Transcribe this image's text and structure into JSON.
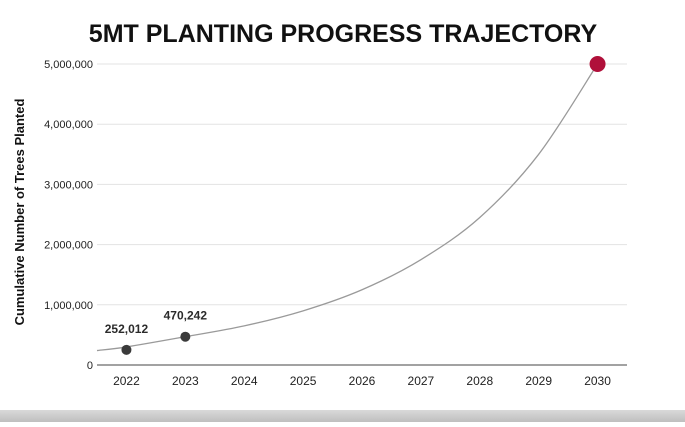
{
  "colors": {
    "background": "#ffffff",
    "grid": "#e3e3e3",
    "axis": "#444444",
    "trend_line": "#9a9a9a",
    "point": "#3a3a3a",
    "target_point": "#b0103a"
  },
  "chart_data": {
    "type": "line",
    "title": "5MT PLANTING PROGRESS TRAJECTORY",
    "xlabel": "",
    "ylabel": "Cumulative Number of Trees Planted",
    "ylim": [
      0,
      5000000
    ],
    "xlim": [
      2021.5,
      2030.5
    ],
    "grid": true,
    "y_ticks": [
      0,
      1000000,
      2000000,
      3000000,
      4000000,
      5000000
    ],
    "y_tick_labels": [
      "0",
      "1,000,000",
      "2,000,000",
      "3,000,000",
      "4,000,000",
      "5,000,000"
    ],
    "x_ticks": [
      2022,
      2023,
      2024,
      2025,
      2026,
      2027,
      2028,
      2029,
      2030
    ],
    "x_tick_labels": [
      "2022",
      "2023",
      "2024",
      "2025",
      "2026",
      "2027",
      "2028",
      "2029",
      "2030"
    ],
    "trajectory": {
      "x": [
        2021.5,
        2022,
        2023,
        2024,
        2025,
        2026,
        2027,
        2028,
        2029,
        2030
      ],
      "y": [
        240000,
        300000,
        470000,
        650000,
        900000,
        1250000,
        1750000,
        2450000,
        3500000,
        5000000
      ]
    },
    "points": [
      {
        "x": 2022,
        "y": 252012,
        "label": "252,012",
        "kind": "actual"
      },
      {
        "x": 2023,
        "y": 470242,
        "label": "470,242",
        "kind": "actual"
      },
      {
        "x": 2030,
        "y": 5000000,
        "label": "",
        "kind": "target"
      }
    ]
  }
}
